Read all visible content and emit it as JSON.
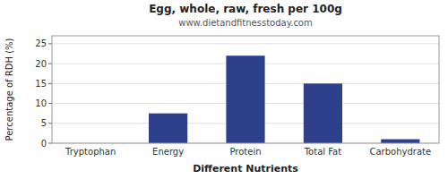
{
  "chart_data": {
    "type": "bar",
    "title": "Egg, whole, raw, fresh per 100g",
    "subtitle": "www.dietandfitnesstoday.com",
    "xlabel": "Different Nutrients",
    "ylabel": "Percentage of RDH (%)",
    "categories": [
      "Tryptophan",
      "Energy",
      "Protein",
      "Total Fat",
      "Carbohydrate"
    ],
    "values": [
      0.0,
      7.5,
      22.0,
      15.0,
      1.0
    ],
    "color": "#2e3f8c",
    "ylim": [
      0,
      27
    ],
    "yticks": [
      0,
      5,
      10,
      15,
      20,
      25
    ],
    "grid": true
  }
}
